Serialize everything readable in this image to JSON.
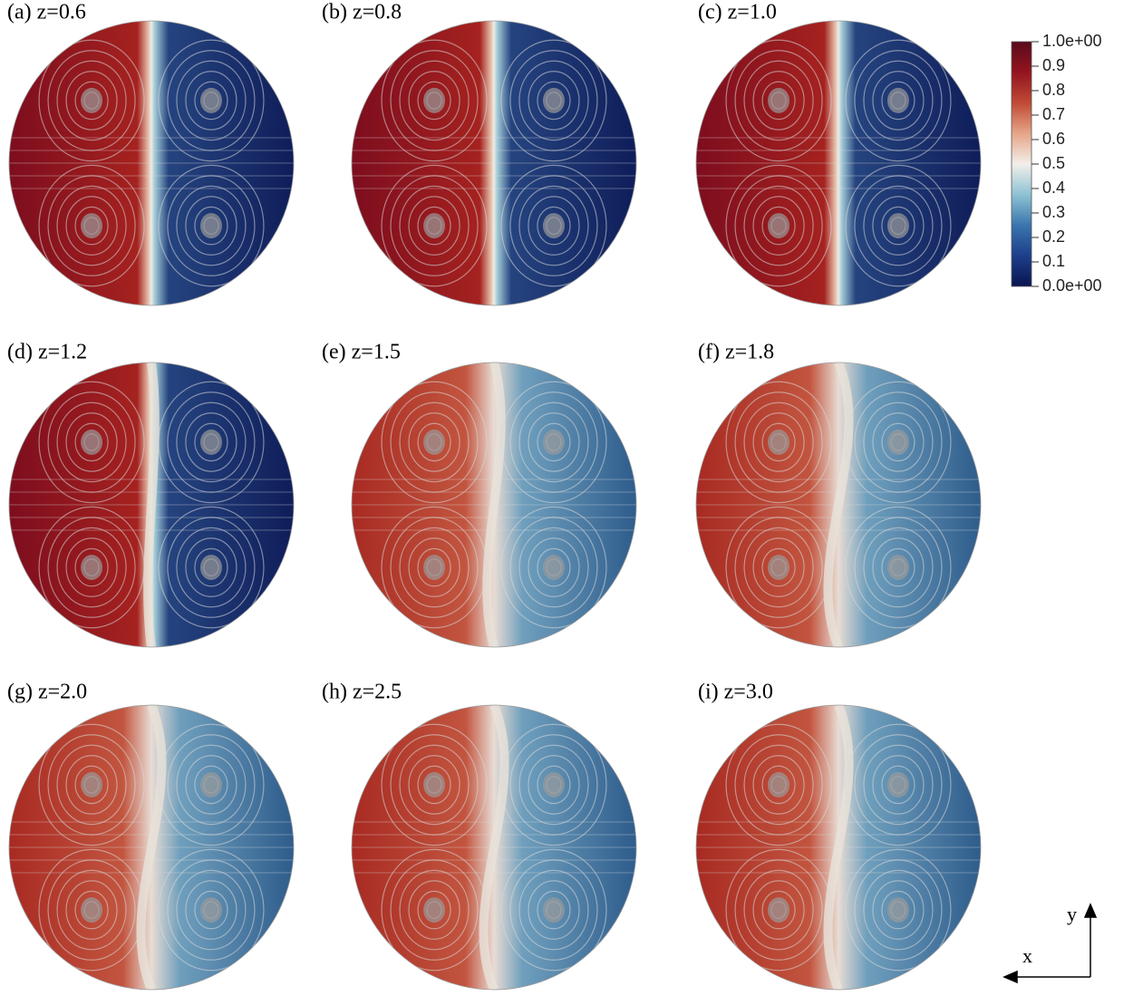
{
  "panels": [
    {
      "label": "(a) z=0.6"
    },
    {
      "label": "(b) z=0.8"
    },
    {
      "label": "(c) z=1.0"
    },
    {
      "label": "(d) z=1.2"
    },
    {
      "label": "(e) z=1.5"
    },
    {
      "label": "(f) z=1.8"
    },
    {
      "label": "(g) z=2.0"
    },
    {
      "label": "(h) z=2.5"
    },
    {
      "label": "(i) z=3.0"
    }
  ],
  "colorbar": {
    "min": 0,
    "max": 1,
    "colors": [
      "#0a1450",
      "#1d3f8a",
      "#3a75ad",
      "#8ec2d4",
      "#f2efe9",
      "#e6a587",
      "#c04a35",
      "#93141f",
      "#5a0a1c"
    ],
    "ticks": [
      {
        "value": 1,
        "label": "1.0e+00"
      },
      0.9,
      0.8,
      0.7,
      0.6,
      0.5,
      0.4,
      0.3,
      0.2,
      0.1,
      {
        "value": 0,
        "label": "0.0e+00"
      }
    ]
  },
  "axes": {
    "y": "y",
    "x": "x"
  }
}
